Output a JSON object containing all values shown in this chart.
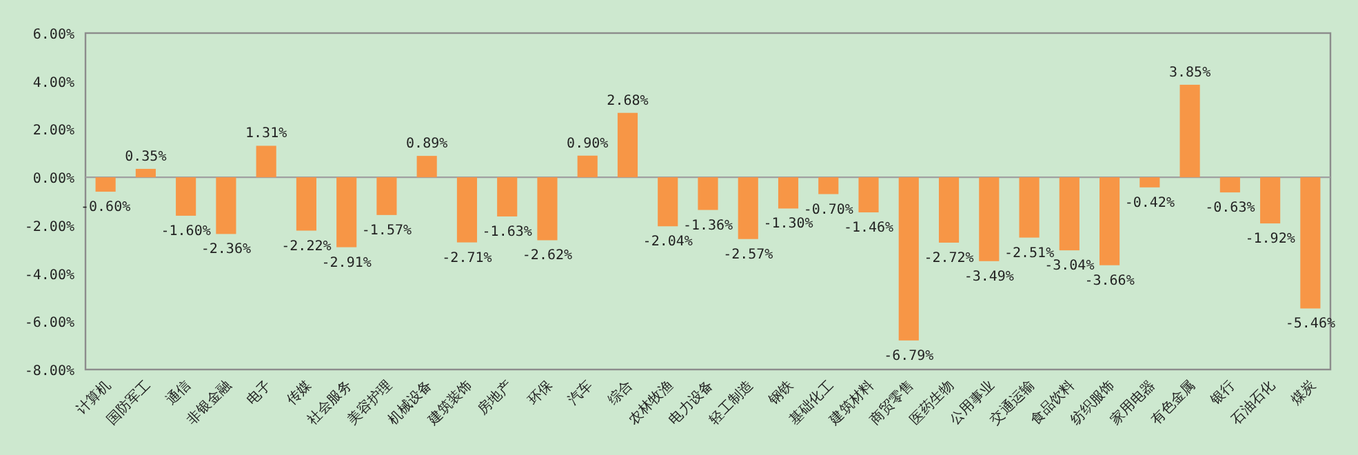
{
  "chart_data": {
    "type": "bar",
    "categories": [
      "计算机",
      "国防军工",
      "通信",
      "非银金融",
      "电子",
      "传媒",
      "社会服务",
      "美容护理",
      "机械设备",
      "建筑装饰",
      "房地产",
      "环保",
      "汽车",
      "综合",
      "农林牧渔",
      "电力设备",
      "轻工制造",
      "钢铁",
      "基础化工",
      "建筑材料",
      "商贸零售",
      "医药生物",
      "公用事业",
      "交通运输",
      "食品饮料",
      "纺织服饰",
      "家用电器",
      "有色金属",
      "银行",
      "石油石化",
      "煤炭"
    ],
    "values": [
      -0.6,
      0.35,
      -1.6,
      -2.36,
      1.31,
      -2.22,
      -2.91,
      -1.57,
      0.89,
      -2.71,
      -1.63,
      -2.62,
      0.9,
      2.68,
      -2.04,
      -1.36,
      -2.57,
      -1.3,
      -0.7,
      -1.46,
      -6.79,
      -2.72,
      -3.49,
      -2.51,
      -3.04,
      -3.66,
      -0.42,
      3.85,
      -0.63,
      -1.92,
      -5.46
    ],
    "value_labels": [
      "-0.60%",
      "0.35%",
      "-1.60%",
      "-2.36%",
      "1.31%",
      "-2.22%",
      "-2.91%",
      "-1.57%",
      "0.89%",
      "-2.71%",
      "-1.63%",
      "-2.62%",
      "0.90%",
      "2.68%",
      "-2.04%",
      "-1.36%",
      "-2.57%",
      "-1.30%",
      "-0.70%",
      "-1.46%",
      "-6.79%",
      "-2.72%",
      "-3.49%",
      "-2.51%",
      "-3.04%",
      "-3.66%",
      "-0.42%",
      "3.85%",
      "-0.63%",
      "-1.92%",
      "-5.46%"
    ],
    "color": "#f79646",
    "ylim": [
      -8,
      6
    ],
    "yticks": [
      {
        "value": -8,
        "label": "-8.00%"
      },
      {
        "value": -6,
        "label": "-6.00%"
      },
      {
        "value": -4,
        "label": "-4.00%"
      },
      {
        "value": -2,
        "label": "-2.00%"
      },
      {
        "value": 0,
        "label": "0.00%"
      },
      {
        "value": 2,
        "label": "2.00%"
      },
      {
        "value": 4,
        "label": "4.00%"
      },
      {
        "value": 6,
        "label": "6.00%"
      }
    ]
  }
}
